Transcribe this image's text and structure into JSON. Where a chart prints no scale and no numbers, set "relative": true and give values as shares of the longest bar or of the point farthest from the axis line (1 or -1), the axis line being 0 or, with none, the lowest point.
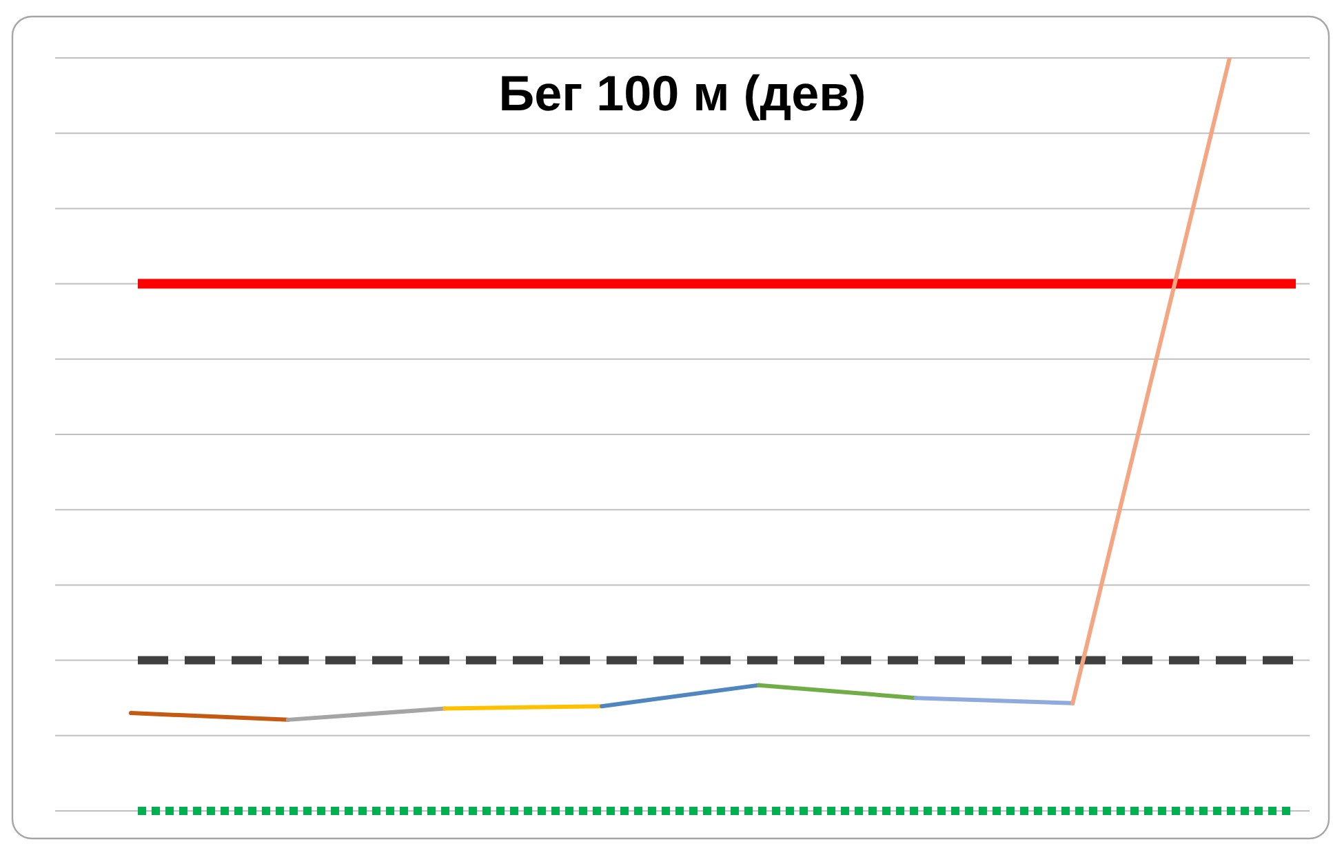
{
  "chart_data": {
    "type": "line",
    "title": "Бег 100 м (дев)",
    "relative": true,
    "grid": true,
    "categories": [
      null,
      null,
      null,
      null,
      null,
      null,
      null,
      null
    ],
    "series": [
      {
        "color": "#c65911",
        "values": [
          0.13,
          0.121,
          null,
          null,
          null,
          null,
          null,
          null
        ]
      },
      {
        "color": "#a5a5a5",
        "values": [
          null,
          0.121,
          0.136,
          null,
          null,
          null,
          null,
          null
        ]
      },
      {
        "color": "#ffc000",
        "values": [
          null,
          null,
          0.136,
          0.139,
          null,
          null,
          null,
          null
        ]
      },
      {
        "color": "#4f86c0",
        "values": [
          null,
          null,
          null,
          0.139,
          0.167,
          null,
          null,
          null
        ]
      },
      {
        "color": "#70ad47",
        "values": [
          null,
          null,
          null,
          null,
          0.167,
          0.15,
          null,
          null
        ]
      },
      {
        "color": "#8faadc",
        "values": [
          null,
          null,
          null,
          null,
          null,
          0.15,
          0.143,
          null
        ]
      },
      {
        "color": "#f4a582",
        "values": [
          null,
          null,
          null,
          null,
          null,
          null,
          0.143,
          1.0
        ]
      }
    ],
    "ref_lines": [
      {
        "axis": "y",
        "value": 0.7,
        "color": "#ff0000",
        "line_style": "solid"
      },
      {
        "axis": "y",
        "value": 0.2,
        "color": "#404040",
        "line_style": "dashed"
      },
      {
        "axis": "y",
        "value": 0,
        "color": "#00b050",
        "line_style": "dotted"
      }
    ]
  }
}
